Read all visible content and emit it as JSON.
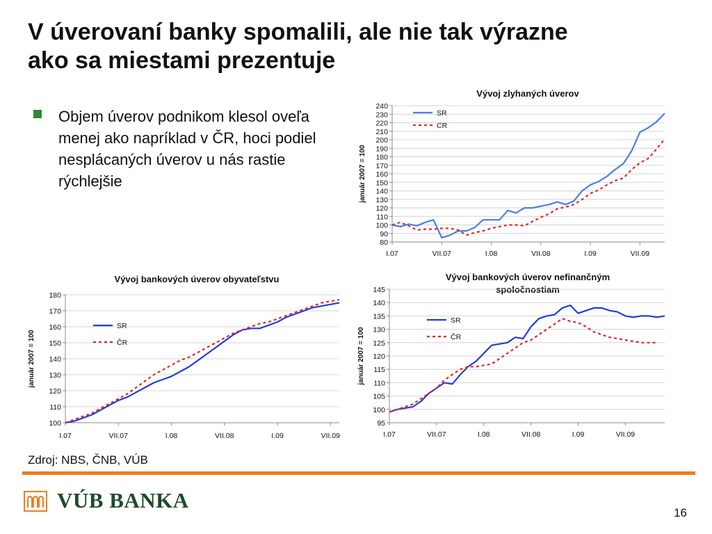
{
  "slide": {
    "title_line1": "V úverovaní banky spomalili, ale nie tak výrazne",
    "title_line2": "ako sa miestami prezentuje",
    "bullet": "Objem úverov podnikom klesol oveľa menej ako napríklad v ČR, hoci podiel nesplácaných úverov u nás rastie rýchlejšie",
    "source": "Zdroj: NBS, ČNB, VÚB",
    "logo_text": "VÚB BANKA",
    "page_number": "16"
  },
  "colors": {
    "sr": "#1f3fdc",
    "sr_top": "#4a7ee6",
    "cr": "#e32626",
    "accent": "#f07c21",
    "bullet": "#2d8a2d"
  },
  "chart_data": [
    {
      "id": "npl",
      "type": "line",
      "title": "Vývoj zlyhaných úverov",
      "ylabel": "január 2007 = 100",
      "ylim": [
        80,
        240
      ],
      "ytick_step": 10,
      "x_tick_labels": [
        "I.07",
        "VII.07",
        "I.08",
        "VII.08",
        "I.09",
        "VII.09"
      ],
      "x_tick_index": [
        0,
        6,
        12,
        18,
        24,
        30
      ],
      "legend_position": "top-left",
      "series": [
        {
          "name": "SR",
          "style": "solid",
          "values": [
            100,
            98,
            101,
            99,
            103,
            106,
            85,
            88,
            93,
            93,
            97,
            106,
            106,
            106,
            117,
            114,
            120,
            120,
            122,
            124,
            127,
            124,
            128,
            140,
            147,
            151,
            157,
            165,
            172,
            187,
            209,
            214,
            221,
            231
          ]
        },
        {
          "name": "CR",
          "style": "dashed",
          "values": [
            100,
            103,
            99,
            94,
            95,
            95,
            96,
            96,
            94,
            88,
            91,
            93,
            96,
            98,
            100,
            100,
            99,
            104,
            109,
            113,
            119,
            121,
            124,
            130,
            137,
            141,
            147,
            152,
            155,
            165,
            173,
            178,
            189,
            201
          ]
        }
      ]
    },
    {
      "id": "households",
      "type": "line",
      "title": "Vývoj bankových úverov obyvateľstvu",
      "ylabel": "január 2007 = 100",
      "ylim": [
        100,
        180
      ],
      "ytick_step": 10,
      "x_tick_labels": [
        "I.07",
        "VII.07",
        "I.08",
        "VII.08",
        "I.09",
        "VII.09"
      ],
      "x_tick_index": [
        0,
        6,
        12,
        18,
        24,
        30
      ],
      "legend_position": "center-left",
      "series": [
        {
          "name": "SR",
          "style": "solid",
          "values": [
            100,
            101,
            103,
            105,
            108,
            111,
            114,
            116,
            119,
            122,
            125,
            127,
            129,
            132,
            135,
            139,
            143,
            147,
            151,
            155,
            158,
            159,
            159,
            161,
            163,
            166,
            168,
            170,
            172,
            173,
            174,
            175
          ]
        },
        {
          "name": "ČR",
          "style": "dashed",
          "values": [
            100,
            102,
            104,
            106,
            109,
            112,
            115,
            118,
            122,
            126,
            130,
            133,
            136,
            139,
            141,
            144,
            147,
            150,
            153,
            156,
            158,
            160,
            162,
            163,
            165,
            167,
            169,
            171,
            173,
            175,
            176,
            177
          ]
        }
      ]
    },
    {
      "id": "nonfinancial",
      "type": "line",
      "title": "Vývoj bankových úverov nefinančným spoločnostiam",
      "title_line1": "Vývoj bankových úverov nefinančným",
      "title_line2": "spoločnostiam",
      "ylabel": "január 2007 = 100",
      "ylim": [
        95,
        145
      ],
      "ytick_step": 5,
      "x_tick_labels": [
        "I.07",
        "VII.07",
        "I.08",
        "VII.08",
        "I.09",
        "VII.09"
      ],
      "x_tick_index": [
        0,
        6,
        12,
        18,
        24,
        30
      ],
      "legend_position": "center-left",
      "series": [
        {
          "name": "SR",
          "style": "solid",
          "values": [
            99,
            100,
            100.5,
            101,
            103,
            106,
            108,
            110,
            109.5,
            113,
            116,
            118,
            121,
            124,
            124.5,
            125,
            127,
            126.5,
            131,
            134,
            135,
            135.5,
            138,
            139,
            136,
            137,
            138,
            138,
            137,
            136.5,
            135,
            134.5,
            135,
            135,
            134.5,
            135
          ]
        },
        {
          "name": "ČR",
          "style": "dashed",
          "values": [
            99,
            100,
            101,
            102,
            104,
            106,
            108,
            111,
            113,
            115,
            116,
            116,
            116.5,
            117,
            119,
            121,
            123,
            125,
            126,
            128,
            130,
            132,
            134,
            133,
            132.5,
            131,
            129,
            128,
            127,
            126.5,
            126,
            125.5,
            125,
            125,
            125
          ]
        }
      ]
    }
  ]
}
